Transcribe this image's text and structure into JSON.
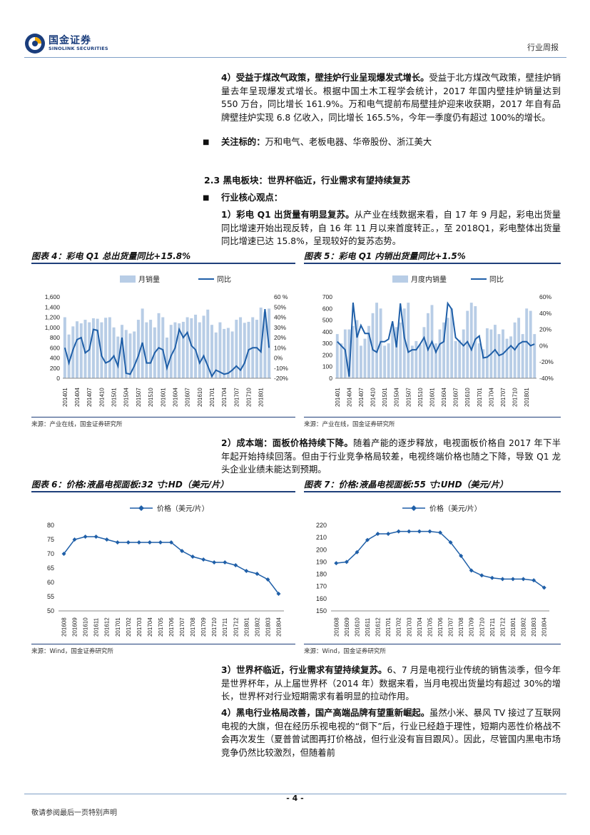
{
  "header": {
    "logo_cn": "国金证券",
    "logo_en": "SINOLINK SECURITIES",
    "report_type": "行业周报"
  },
  "paragraphs": {
    "p1": {
      "lead": "4）受益于煤改气政策，壁挂炉行业呈现爆发式增长。",
      "body": "受益于北方煤改气政策，壁挂炉销量去年呈现爆发式增长。根据中国土木工程学会统计，2017 年国内壁挂炉销量达到 550 万台，同比增长 161.9%。万和电气提前布局壁挂炉迎来收获期，2017 年自有品牌壁挂炉实现 6.8 亿收入，同比增长 165.5%，今年一季度仍有超过 100%的增长。"
    },
    "p2": {
      "lead": "关注标的：",
      "body": "万和电气、老板电器、华帝股份、浙江美大"
    },
    "section": "2.3 黑电板块：世界杯临近，行业需求有望持续复苏",
    "p3": {
      "lead": "行业核心观点："
    },
    "p4": {
      "lead": "1）彩电 Q1 出货量有明显复苏。",
      "body": "从产业在线数据来看，自 17 年 9 月起，彩电出货量同比增速开始出现反转，自 16 年 11 月以来首度转正。，至 2018Q1，彩电整体出货量同比增速已达 15.8%，呈现较好的复苏态势。"
    },
    "p5": {
      "lead": "2）成本端：面板价格持续下降。",
      "body": "随着产能的逐步释放，电视面板价格自 2017 年下半年起开始持续回落。但由于行业竞争格局较差，电视终端价格也随之下降，导致 Q1 龙头企业业绩未能达到预期。"
    },
    "p6": {
      "lead": "3）世界杯临近，行业需求有望持续复苏。",
      "body": "6、7 月是电视行业传统的销售淡季，但今年是世界杯年，从上届世界杯（2014 年）数据来看，当月电视出货量均有超过 30%的增长，世界杯对行业短期需求有着明显的拉动作用。"
    },
    "p7": {
      "lead": "4）黑电行业格局改善，国产高端品牌有望重新崛起。",
      "body": "虽然小米、暴风 TV 接过了互联网电视的大旗，但在经历乐视电视的“倒下”后，行业已经趋于理性，短期内恶性价格战不会再次发生（夏普曾试图再打价格战，但行业没有盲目跟风）。因此，尽管国内黑电市场竞争仍然比较激烈，但随着前"
    }
  },
  "figures": {
    "fig4": {
      "title": "图表 4：彩电 Q1 总出货量同比+15.8%",
      "source": "来源：产业在线，国金证券研究所"
    },
    "fig5": {
      "title": "图表 5：彩电 Q1 内销出货量同比+1.5%",
      "source": "来源：产业在线，国金证券研究所"
    },
    "fig6": {
      "title": "图表 6：价格:液晶电视面板:32 寸:HD（美元/片）",
      "source": "来源：Wind，国金证券研究所"
    },
    "fig7": {
      "title": "图表 7：价格:液晶电视面板:55 寸:UHD（美元/片）",
      "source": "来源：Wind，国金证券研究所"
    }
  },
  "chart_data": [
    {
      "type": "bar",
      "id": "fig4",
      "categories": [
        "201401",
        "201402",
        "201403",
        "201404",
        "201405",
        "201406",
        "201407",
        "201408",
        "201409",
        "201410",
        "201411",
        "201412",
        "201501",
        "201502",
        "201503",
        "201504",
        "201505",
        "201506",
        "201507",
        "201508",
        "201509",
        "201510",
        "201511",
        "201512",
        "201601",
        "201602",
        "201603",
        "201604",
        "201605",
        "201606",
        "201607",
        "201608",
        "201609",
        "201610",
        "201611",
        "201612",
        "201701",
        "201702",
        "201703",
        "201704",
        "201705",
        "201706",
        "201707",
        "201708",
        "201709",
        "201710",
        "201711",
        "201712",
        "201801",
        "201802",
        "201803"
      ],
      "x_tick_labels": [
        "201401",
        "201404",
        "201407",
        "201410",
        "201501",
        "201504",
        "201507",
        "201510",
        "201601",
        "201604",
        "201607",
        "201610",
        "201701",
        "201704",
        "201707",
        "201710",
        "201801"
      ],
      "series": [
        {
          "name": "月销量",
          "axis": "left",
          "kind": "bar",
          "color": "#b8cde6",
          "values": [
            1200,
            860,
            1020,
            1120,
            1080,
            1150,
            1100,
            1180,
            1170,
            1100,
            1190,
            1200,
            1000,
            820,
            1050,
            950,
            880,
            920,
            1150,
            1370,
            1100,
            1150,
            1000,
            1280,
            1200,
            800,
            1050,
            1100,
            1080,
            1110,
            1200,
            1180,
            1250,
            1100,
            1230,
            1350,
            1050,
            900,
            1100,
            970,
            990,
            920,
            1150,
            1200,
            1090,
            1110,
            1200,
            1150,
            1390,
            1300,
            1370
          ]
        },
        {
          "name": "同比",
          "axis": "right",
          "kind": "line",
          "color": "#1f5fa8",
          "values": [
            10,
            -5,
            8,
            18,
            20,
            5,
            8,
            28,
            27,
            2,
            -5,
            -3,
            2,
            -8,
            20,
            -15,
            -16,
            -8,
            2,
            15,
            -5,
            -5,
            5,
            10,
            8,
            -10,
            2,
            10,
            28,
            20,
            25,
            12,
            8,
            -5,
            2,
            -8,
            -18,
            -12,
            -14,
            -16,
            -15,
            -12,
            -8,
            -12,
            -5,
            8,
            10,
            10,
            6,
            48,
            10
          ]
        }
      ],
      "ylim_left": [
        0,
        1600
      ],
      "ylim_right": [
        -20,
        60
      ],
      "left_ticks": [
        "0",
        "200",
        "400",
        "600",
        "800",
        "1,000",
        "1,200",
        "1,400",
        "1,600"
      ],
      "right_ticks": [
        "-20%",
        "-10%",
        "0%",
        "10%",
        "20%",
        "30%",
        "40%",
        "50%",
        "60 %"
      ],
      "legend": "top",
      "grid": false
    },
    {
      "type": "bar",
      "id": "fig5",
      "categories": [
        "201401",
        "201402",
        "201403",
        "201404",
        "201405",
        "201406",
        "201407",
        "201408",
        "201409",
        "201410",
        "201411",
        "201412",
        "201501",
        "201502",
        "201503",
        "201504",
        "201505",
        "201506",
        "201507",
        "201508",
        "201509",
        "201510",
        "201511",
        "201512",
        "201601",
        "201602",
        "201603",
        "201604",
        "201605",
        "201606",
        "201607",
        "201608",
        "201609",
        "201610",
        "201611",
        "201612",
        "201701",
        "201702",
        "201703",
        "201704",
        "201705",
        "201706",
        "201707",
        "201708",
        "201709",
        "201710",
        "201711",
        "201712",
        "201801",
        "201802",
        "201803"
      ],
      "x_tick_labels": [
        "201401",
        "201404",
        "201407",
        "201410",
        "201501",
        "201504",
        "201507",
        "201510",
        "201601",
        "201604",
        "201607",
        "201610",
        "201701",
        "201704",
        "201707",
        "201710",
        "201801"
      ],
      "series": [
        {
          "name": "月度内销量",
          "axis": "left",
          "kind": "bar",
          "color": "#b8cde6",
          "values": [
            380,
            300,
            420,
            420,
            450,
            500,
            280,
            340,
            450,
            560,
            650,
            600,
            280,
            300,
            450,
            440,
            480,
            600,
            650,
            280,
            320,
            290,
            440,
            560,
            630,
            300,
            420,
            480,
            520,
            600,
            320,
            330,
            420,
            580,
            650,
            620,
            300,
            250,
            430,
            420,
            460,
            380,
            420,
            340,
            360,
            480,
            520,
            380,
            600,
            580,
            380
          ]
        },
        {
          "name": "同比",
          "axis": "right",
          "kind": "line",
          "color": "#1f5fa8",
          "values": [
            5,
            0,
            -5,
            -38,
            53,
            10,
            25,
            15,
            15,
            -5,
            -8,
            5,
            5,
            8,
            30,
            -2,
            52,
            10,
            -8,
            -5,
            -5,
            2,
            10,
            -5,
            5,
            -8,
            2,
            5,
            52,
            45,
            10,
            5,
            0,
            5,
            -5,
            8,
            12,
            -15,
            -14,
            -10,
            -5,
            -12,
            -10,
            -5,
            0,
            -5,
            2,
            5,
            5,
            0,
            2
          ]
        }
      ],
      "ylim_left": [
        0,
        700
      ],
      "ylim_right": [
        -40,
        60
      ],
      "left_ticks": [
        "0",
        "100",
        "200",
        "300",
        "400",
        "500",
        "600",
        "700"
      ],
      "right_ticks": [
        "-40%",
        "-20%",
        "0%",
        "20%",
        "40%",
        "60%"
      ],
      "legend": "top",
      "grid": false
    },
    {
      "type": "line",
      "id": "fig6",
      "categories": [
        "201608",
        "201609",
        "201610",
        "201611",
        "201612",
        "201701",
        "201702",
        "201703",
        "201704",
        "201705",
        "201706",
        "201707",
        "201708",
        "201709",
        "201710",
        "201711",
        "201712",
        "201801",
        "201802",
        "201803",
        "201804"
      ],
      "series": [
        {
          "name": "价格（美元/片）",
          "color": "#1f5fa8",
          "values": [
            70,
            75,
            76,
            76,
            75,
            74,
            74,
            74,
            74,
            74,
            74,
            71,
            69,
            68,
            67,
            67,
            66,
            64,
            63,
            61,
            56
          ]
        }
      ],
      "ylim": [
        50,
        80
      ],
      "y_ticks": [
        "50",
        "55",
        "60",
        "65",
        "70",
        "75",
        "80"
      ],
      "legend": "top",
      "grid": false
    },
    {
      "type": "line",
      "id": "fig7",
      "categories": [
        "201608",
        "201609",
        "201610",
        "201611",
        "201612",
        "201701",
        "201702",
        "201703",
        "201704",
        "201705",
        "201706",
        "201707",
        "201708",
        "201709",
        "201710",
        "201711",
        "201712",
        "201801",
        "201802",
        "201803",
        "201804"
      ],
      "series": [
        {
          "name": "价格（美元/片）",
          "color": "#1f5fa8",
          "values": [
            189,
            190,
            198,
            208,
            213,
            213,
            215,
            215,
            215,
            215,
            214,
            206,
            195,
            183,
            179,
            177,
            176,
            176,
            176,
            175,
            169
          ]
        }
      ],
      "ylim": [
        150,
        220
      ],
      "y_ticks": [
        "150",
        "160",
        "170",
        "180",
        "190",
        "200",
        "210",
        "220"
      ],
      "legend": "top",
      "grid": false
    }
  ],
  "footer": {
    "page_number": "- 4 -",
    "note": "敬请参阅最后一页特别声明"
  }
}
